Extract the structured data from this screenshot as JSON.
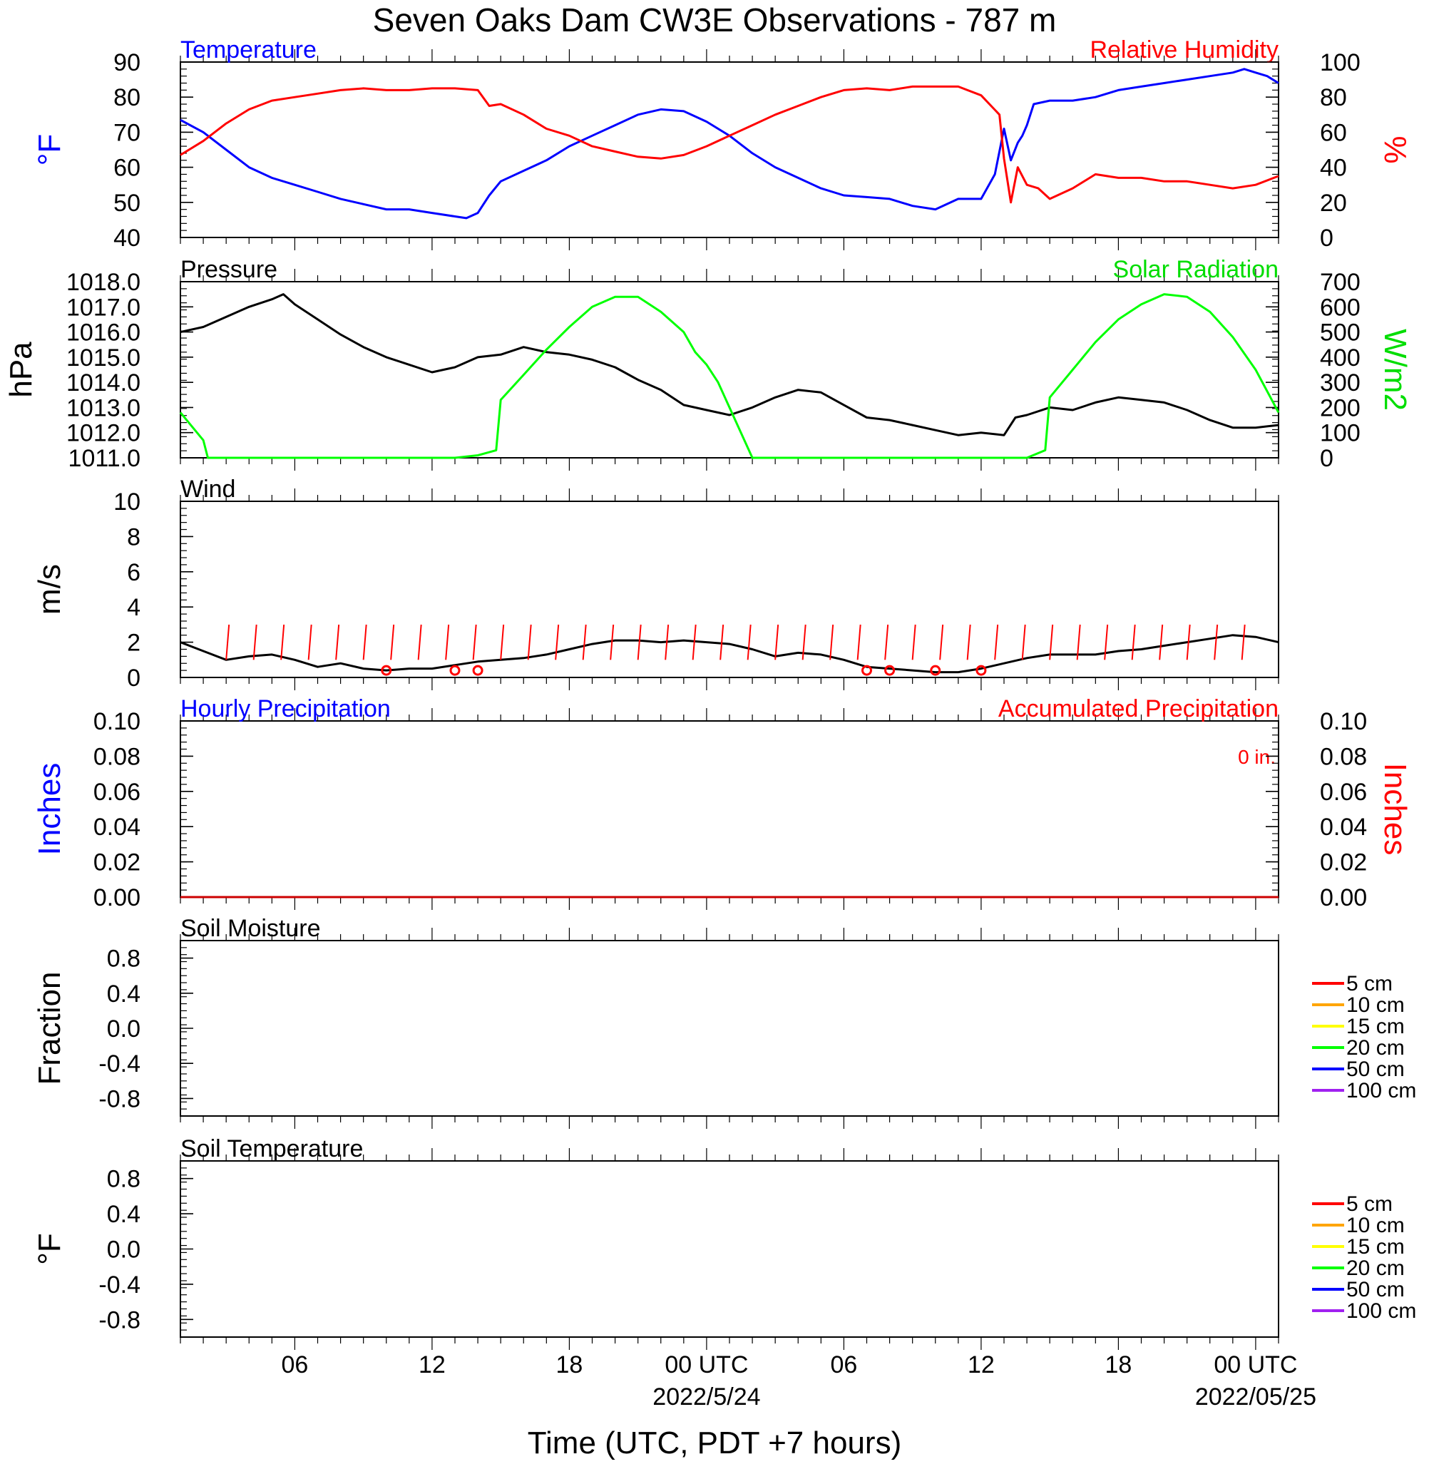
{
  "title": "Seven Oaks Dam CW3E Observations - 787 m",
  "xlabel": "Time (UTC, PDT +7 hours)",
  "x_ticks": [
    {
      "t": 6,
      "label": "06",
      "date": ""
    },
    {
      "t": 12,
      "label": "12",
      "date": ""
    },
    {
      "t": 18,
      "label": "18",
      "date": ""
    },
    {
      "t": 24,
      "label": "00 UTC",
      "date": "2022/5/24"
    },
    {
      "t": 30,
      "label": "06",
      "date": ""
    },
    {
      "t": 36,
      "label": "12",
      "date": ""
    },
    {
      "t": 42,
      "label": "18",
      "date": ""
    },
    {
      "t": 48,
      "label": "00 UTC",
      "date": "2022/05/25"
    }
  ],
  "soil_legend": [
    {
      "label": "5 cm",
      "color": "#ff0000"
    },
    {
      "label": "10 cm",
      "color": "#ffa500"
    },
    {
      "label": "15 cm",
      "color": "#ffff00"
    },
    {
      "label": "20 cm",
      "color": "#00ff00"
    },
    {
      "label": "50 cm",
      "color": "#0000ff"
    },
    {
      "label": "100 cm",
      "color": "#a020f0"
    }
  ],
  "chart_data": [
    {
      "type": "line",
      "id": "temp_rh",
      "title_left": "Temperature",
      "title_right": "Relative Humidity",
      "ylabel_left": "°F",
      "ylabel_right": "%",
      "ylim_left": [
        40,
        90
      ],
      "ylim_right": [
        0,
        100
      ],
      "yticks_left": [
        "40",
        "50",
        "60",
        "70",
        "80",
        "90"
      ],
      "yticks_right": [
        "0",
        "20",
        "40",
        "60",
        "80",
        "100"
      ],
      "xlim_hours": [
        1,
        49
      ],
      "series": [
        {
          "name": "Temperature",
          "axis": "left",
          "color": "#0000ff",
          "x": [
            1,
            2,
            3,
            4,
            5,
            6,
            7,
            8,
            9,
            10,
            11,
            12,
            13,
            13.5,
            14,
            14.5,
            15,
            16,
            17,
            18,
            19,
            20,
            21,
            22,
            23,
            24,
            25,
            26,
            27,
            28,
            29,
            30,
            31,
            32,
            33,
            34,
            35,
            36,
            36.6,
            37,
            37.3,
            37.6,
            37.8,
            38,
            38.3,
            39,
            40,
            41,
            42,
            43,
            44,
            45,
            46,
            47,
            47.5,
            48,
            48.5,
            49
          ],
          "y": [
            73.5,
            70,
            65,
            60,
            57,
            55,
            53,
            51,
            49.5,
            48,
            48,
            47,
            46,
            45.5,
            47,
            52,
            56,
            59,
            62,
            66,
            69,
            72,
            75,
            76.5,
            76,
            73,
            69,
            64,
            60,
            57,
            54,
            52,
            51.5,
            51,
            49,
            48,
            51,
            51,
            58,
            71,
            62,
            67,
            69,
            72,
            78,
            79,
            79,
            80,
            82,
            83,
            84,
            85,
            86,
            87,
            88,
            87,
            86,
            84
          ]
        },
        {
          "name": "Relative Humidity",
          "axis": "right",
          "color": "#ff0000",
          "x": [
            1,
            2,
            3,
            4,
            5,
            6,
            7,
            8,
            9,
            10,
            11,
            12,
            13,
            14,
            14.5,
            15,
            16,
            17,
            18,
            19,
            20,
            21,
            22,
            23,
            24,
            25,
            26,
            27,
            28,
            29,
            30,
            31,
            32,
            33,
            34,
            35,
            36,
            36.8,
            37,
            37.3,
            37.6,
            38,
            38.5,
            39,
            40,
            41,
            42,
            43,
            44,
            45,
            46,
            47,
            48,
            49
          ],
          "y": [
            47,
            55,
            65,
            73,
            78,
            80,
            82,
            84,
            85,
            84,
            84,
            85,
            85,
            84,
            75,
            76,
            70,
            62,
            58,
            52,
            49,
            46,
            45,
            47,
            52,
            58,
            64,
            70,
            75,
            80,
            84,
            85,
            84,
            86,
            86,
            86,
            81,
            70,
            45,
            20,
            40,
            30,
            28,
            22,
            28,
            36,
            34,
            34,
            32,
            32,
            30,
            28,
            30,
            35
          ]
        }
      ]
    },
    {
      "type": "line",
      "id": "pressure_solar",
      "title_left": "Pressure",
      "title_right": "Solar Radiation",
      "ylabel_left": "hPa",
      "ylabel_right": "W/m2",
      "ylim_left": [
        1011,
        1018
      ],
      "ylim_right": [
        0,
        700
      ],
      "yticks_left": [
        "1011.0",
        "1012.0",
        "1013.0",
        "1014.0",
        "1015.0",
        "1016.0",
        "1017.0",
        "1018.0"
      ],
      "yticks_right": [
        "0",
        "100",
        "200",
        "300",
        "400",
        "500",
        "600",
        "700"
      ],
      "series": [
        {
          "name": "Pressure",
          "axis": "left",
          "color": "#000000",
          "x": [
            1,
            2,
            3,
            4,
            5,
            5.5,
            6,
            7,
            8,
            9,
            10,
            11,
            12,
            13,
            14,
            15,
            16,
            17,
            18,
            19,
            20,
            21,
            22,
            23,
            24,
            25,
            26,
            27,
            28,
            29,
            30,
            31,
            32,
            33,
            34,
            35,
            36,
            37,
            37.5,
            38,
            39,
            40,
            41,
            42,
            43,
            44,
            45,
            46,
            47,
            48,
            49
          ],
          "y": [
            1016.0,
            1016.2,
            1016.6,
            1017.0,
            1017.3,
            1017.5,
            1017.1,
            1016.5,
            1015.9,
            1015.4,
            1015.0,
            1014.7,
            1014.4,
            1014.6,
            1015.0,
            1015.1,
            1015.4,
            1015.2,
            1015.1,
            1014.9,
            1014.6,
            1014.1,
            1013.7,
            1013.1,
            1012.9,
            1012.7,
            1013.0,
            1013.4,
            1013.7,
            1013.6,
            1013.1,
            1012.6,
            1012.5,
            1012.3,
            1012.1,
            1011.9,
            1012.0,
            1011.9,
            1012.6,
            1012.7,
            1013.0,
            1012.9,
            1013.2,
            1013.4,
            1013.3,
            1013.2,
            1012.9,
            1012.5,
            1012.2,
            1012.2,
            1012.3
          ]
        },
        {
          "name": "Solar Radiation",
          "axis": "right",
          "color": "#00ff00",
          "x": [
            1,
            2,
            2.2,
            13,
            14,
            14.8,
            15,
            16,
            17,
            18,
            19,
            20,
            21,
            22,
            23,
            23.5,
            24,
            24.5,
            25,
            26,
            38,
            38.8,
            39,
            40,
            41,
            42,
            43,
            44,
            45,
            46,
            47,
            48,
            49
          ],
          "y": [
            180,
            70,
            0,
            0,
            10,
            30,
            230,
            330,
            430,
            520,
            600,
            640,
            640,
            580,
            500,
            420,
            370,
            300,
            200,
            0,
            0,
            30,
            240,
            350,
            460,
            550,
            610,
            650,
            640,
            580,
            480,
            350,
            180
          ]
        }
      ]
    },
    {
      "type": "line",
      "id": "wind",
      "title_left": "Wind",
      "ylabel_left": "m/s",
      "ylim_left": [
        0,
        10
      ],
      "yticks_left": [
        "0",
        "2",
        "4",
        "6",
        "8",
        "10"
      ],
      "series": [
        {
          "name": "Wind",
          "axis": "left",
          "color": "#000000",
          "x": [
            1,
            2,
            3,
            4,
            5,
            6,
            7,
            8,
            9,
            10,
            11,
            12,
            13,
            14,
            15,
            16,
            17,
            18,
            19,
            20,
            21,
            22,
            23,
            24,
            25,
            26,
            27,
            28,
            29,
            30,
            31,
            32,
            33,
            34,
            35,
            36,
            37,
            38,
            39,
            40,
            41,
            42,
            43,
            44,
            45,
            46,
            47,
            48,
            49
          ],
          "y": [
            2.0,
            1.5,
            1.0,
            1.2,
            1.3,
            1.0,
            0.6,
            0.8,
            0.5,
            0.4,
            0.5,
            0.5,
            0.7,
            0.9,
            1.0,
            1.1,
            1.3,
            1.6,
            1.9,
            2.1,
            2.1,
            2.0,
            2.1,
            2.0,
            1.9,
            1.6,
            1.2,
            1.4,
            1.3,
            1.0,
            0.6,
            0.5,
            0.4,
            0.3,
            0.3,
            0.5,
            0.8,
            1.1,
            1.3,
            1.3,
            1.3,
            1.5,
            1.6,
            1.8,
            2.0,
            2.2,
            2.4,
            2.3,
            2.0
          ]
        }
      ]
    },
    {
      "type": "line",
      "id": "precip",
      "title_left": "Hourly Precipitation",
      "title_right": "Accumulated Precipitation",
      "annotation": "0 in.",
      "ylabel_left": "Inches",
      "ylabel_right": "Inches",
      "ylim_left": [
        0,
        0.1
      ],
      "ylim_right": [
        0,
        0.1
      ],
      "yticks_left": [
        "0.00",
        "0.02",
        "0.04",
        "0.06",
        "0.08",
        "0.10"
      ],
      "yticks_right": [
        "0.00",
        "0.02",
        "0.04",
        "0.06",
        "0.08",
        "0.10"
      ],
      "series": [
        {
          "name": "Hourly Precipitation",
          "axis": "left",
          "color": "#0000ff",
          "x": [
            1,
            49
          ],
          "y": [
            0,
            0
          ]
        },
        {
          "name": "Accumulated Precipitation",
          "axis": "right",
          "color": "#cc0000",
          "x": [
            1,
            49
          ],
          "y": [
            0,
            0
          ]
        }
      ]
    },
    {
      "type": "line",
      "id": "soil_moisture",
      "title_left": "Soil Moisture",
      "ylabel_left": "Fraction",
      "ylim_left": [
        -1,
        1
      ],
      "yticks_left": [
        "-0.8",
        "-0.4",
        "0.0",
        "0.4",
        "0.8"
      ],
      "series": []
    },
    {
      "type": "line",
      "id": "soil_temperature",
      "title_left": "Soil Temperature",
      "ylabel_left": "°F",
      "ylim_left": [
        -1,
        1
      ],
      "yticks_left": [
        "-0.8",
        "-0.4",
        "0.0",
        "0.4",
        "0.8"
      ],
      "series": []
    }
  ]
}
